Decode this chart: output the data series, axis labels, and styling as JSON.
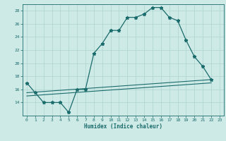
{
  "xlabel": "Humidex (Indice chaleur)",
  "bg_color": "#ceeae7",
  "grid_color": "#aed4d0",
  "line_color": "#1a6b6b",
  "line1_x": [
    0,
    1,
    2,
    3,
    4,
    5,
    6,
    7,
    8,
    9,
    10,
    11,
    12,
    13,
    14,
    15,
    16,
    17,
    18,
    19,
    20,
    21,
    22
  ],
  "line1_y": [
    17,
    15.5,
    14,
    14,
    14,
    12.5,
    16,
    16,
    21.5,
    23,
    25,
    25,
    27,
    27,
    27.5,
    28.5,
    28.5,
    27,
    26.5,
    23.5,
    21,
    19.5,
    17.5
  ],
  "line2_x": [
    0,
    22
  ],
  "line2_y": [
    15.5,
    17.5
  ],
  "line3_x": [
    0,
    22
  ],
  "line3_y": [
    15.0,
    17.0
  ],
  "xlim": [
    -0.5,
    23.5
  ],
  "ylim": [
    12,
    29
  ],
  "yticks": [
    14,
    16,
    18,
    20,
    22,
    24,
    26,
    28
  ],
  "xticks": [
    0,
    1,
    2,
    3,
    4,
    5,
    6,
    7,
    8,
    9,
    10,
    11,
    12,
    13,
    14,
    15,
    16,
    17,
    18,
    19,
    20,
    21,
    22,
    23
  ]
}
